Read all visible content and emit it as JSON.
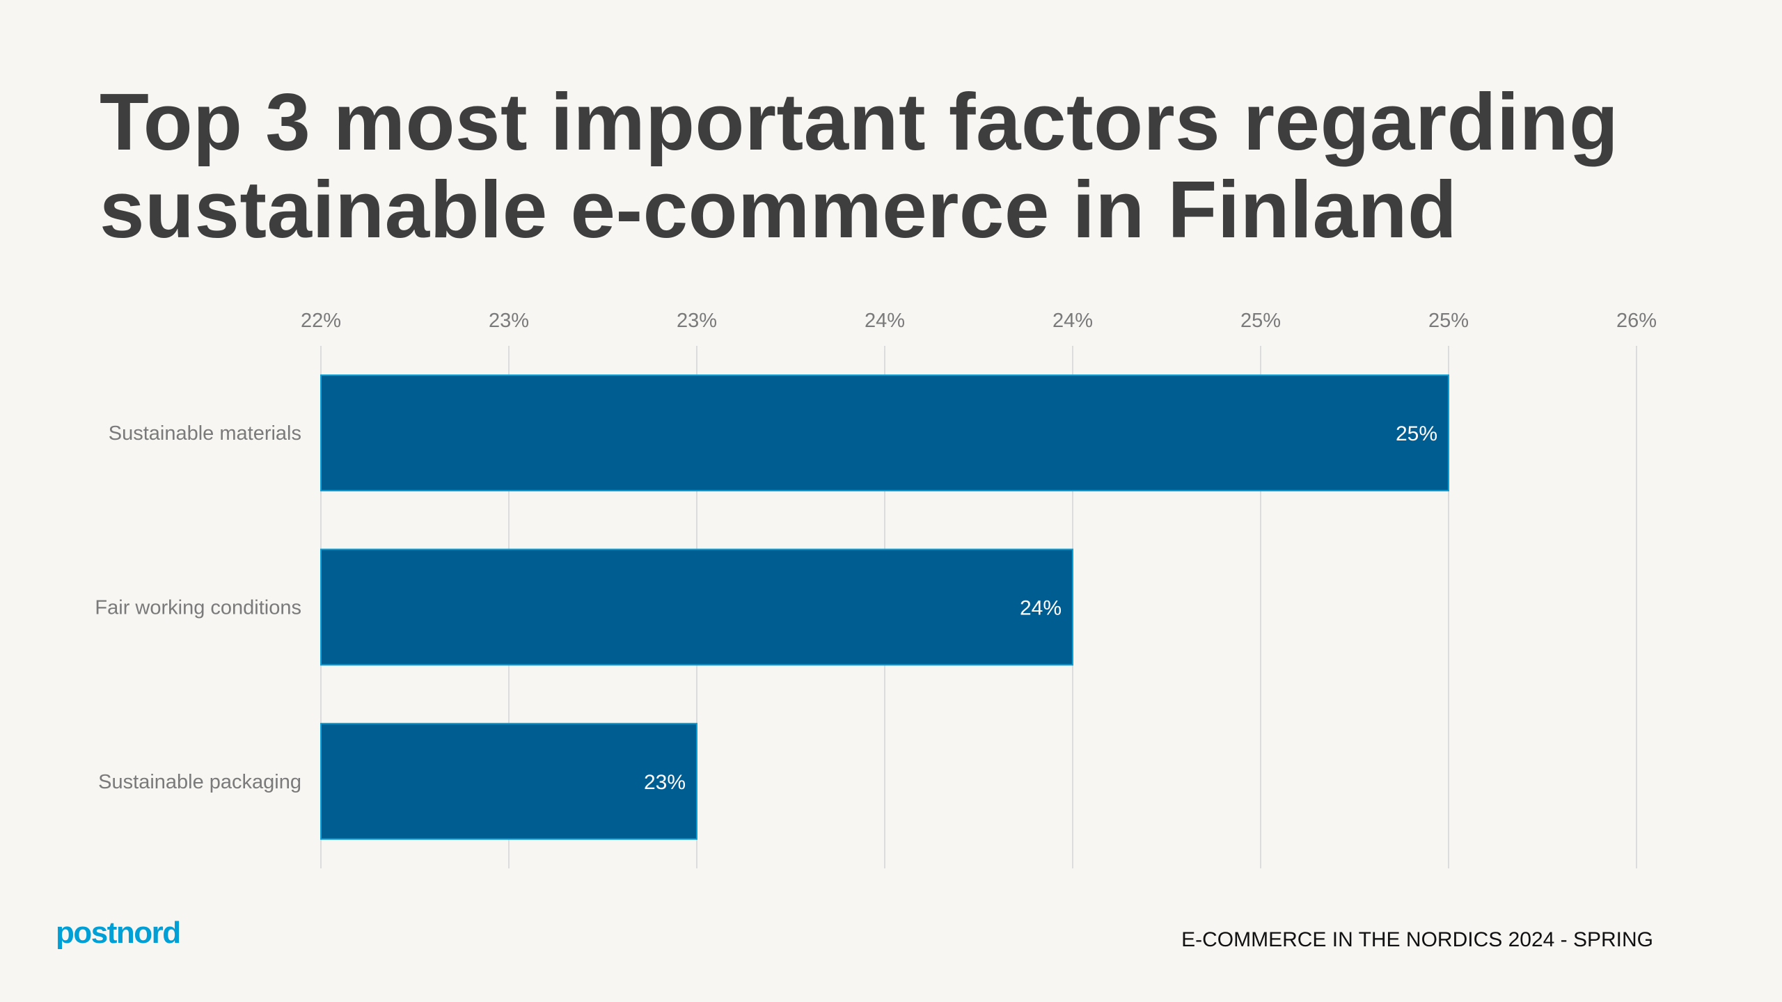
{
  "title": "Top 3 most important factors regarding sustainable e-commerce in Finland",
  "footer": "E-COMMERCE IN THE NORDICS 2024 - SPRING",
  "logo": "postnord",
  "colors": {
    "bar": "#005d91",
    "bar_border": "#0a9fd6",
    "logo": "#00a0d6"
  },
  "chart_data": {
    "type": "bar",
    "orientation": "horizontal",
    "categories": [
      "Sustainable materials",
      "Fair working conditions",
      "Sustainable packaging"
    ],
    "values": [
      25,
      24,
      23
    ],
    "data_labels": [
      "25%",
      "24%",
      "23%"
    ],
    "xlim": [
      22,
      25.5
    ],
    "x_ticks": [
      22,
      22.5,
      23,
      23.5,
      24,
      24.5,
      25,
      25.5
    ],
    "x_tick_labels": [
      "22%",
      "23%",
      "23%",
      "24%",
      "24%",
      "25%",
      "25%",
      "26%"
    ],
    "x_axis_position": "top",
    "grid": true,
    "legend": "none"
  }
}
